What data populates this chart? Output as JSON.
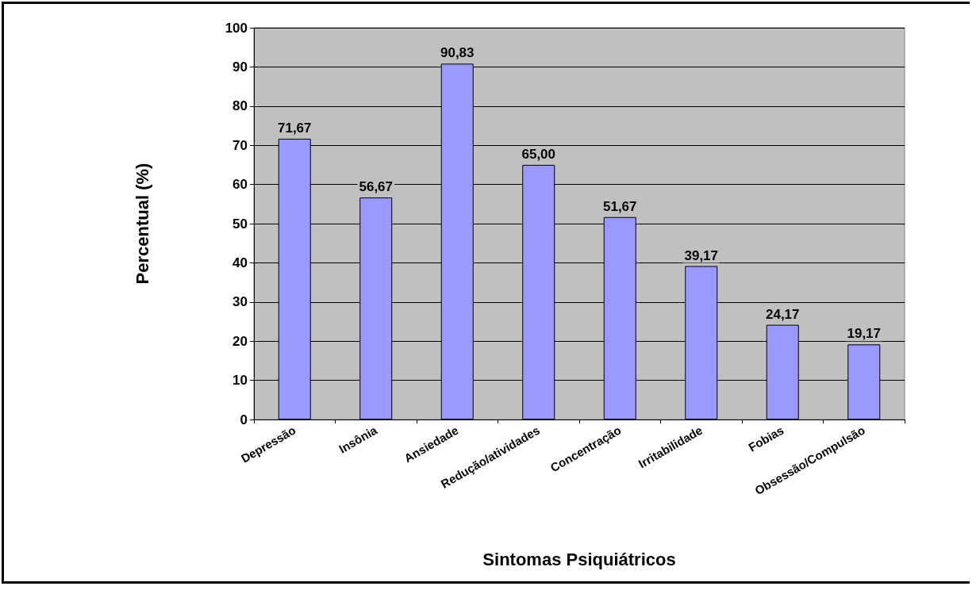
{
  "chart_data": {
    "type": "bar",
    "xlabel": "Sintomas Psiquiátricos",
    "ylabel": "Percentual (%)",
    "categories": [
      "Depressão",
      "Insônia",
      "Ansiedade",
      "Redução/atividades",
      "Concentração",
      "Irritabilidade",
      "Fobias",
      "Obsessão/Compulsão"
    ],
    "values": [
      71.67,
      56.67,
      90.83,
      65.0,
      51.67,
      39.17,
      24.17,
      19.17
    ],
    "value_labels": [
      "71,67",
      "56,67",
      "90,83",
      "65,00",
      "51,67",
      "39,17",
      "24,17",
      "19,17"
    ],
    "color": "#9999ff",
    "ylim": [
      0,
      100
    ],
    "yticks": [
      0,
      10,
      20,
      30,
      40,
      50,
      60,
      70,
      80,
      90,
      100
    ],
    "grid": "y"
  }
}
